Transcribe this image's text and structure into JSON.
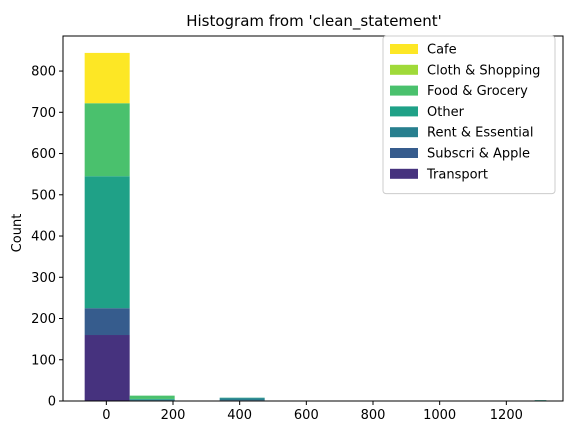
{
  "chart_data": {
    "type": "bar",
    "title": "Histogram from 'clean_statement'",
    "xlabel": "",
    "ylabel": "Count",
    "xlim": [
      -130,
      1370
    ],
    "ylim": [
      0,
      885
    ],
    "x_ticks": [
      0,
      200,
      400,
      600,
      800,
      1000,
      1200
    ],
    "y_ticks": [
      0,
      100,
      200,
      300,
      400,
      500,
      600,
      700,
      800
    ],
    "bins": [
      [
        -65,
        70
      ],
      [
        70,
        205
      ],
      [
        205,
        340
      ],
      [
        340,
        475
      ],
      [
        475,
        610
      ],
      [
        610,
        745
      ],
      [
        745,
        880
      ],
      [
        880,
        1015
      ],
      [
        1015,
        1150
      ],
      [
        1150,
        1285
      ],
      [
        1285,
        1320
      ]
    ],
    "stacked": true,
    "legend_position": "top-right",
    "series": [
      {
        "name": "Transport",
        "color": "#46327e",
        "values": [
          160,
          1,
          0,
          1,
          0,
          0,
          0,
          0,
          0,
          0,
          0
        ]
      },
      {
        "name": "Subscri & Apple",
        "color": "#365c8d",
        "values": [
          65,
          1,
          0,
          1,
          0,
          0,
          0,
          0,
          0,
          0,
          0
        ]
      },
      {
        "name": "Rent & Essential",
        "color": "#277f8e",
        "values": [
          0,
          1,
          0,
          5,
          0,
          0,
          0,
          0,
          0,
          1,
          1
        ]
      },
      {
        "name": "Other",
        "color": "#1fa187",
        "values": [
          320,
          2,
          0,
          1,
          0,
          0,
          0,
          0,
          0,
          0,
          1
        ]
      },
      {
        "name": "Food & Grocery",
        "color": "#4ac16d",
        "values": [
          177,
          8,
          0,
          0,
          0,
          0,
          0,
          0,
          0,
          0,
          0
        ]
      },
      {
        "name": "Cloth & Shopping",
        "color": "#a0da39",
        "values": [
          0,
          0,
          0,
          0,
          0,
          0,
          0,
          0,
          0,
          0,
          0
        ]
      },
      {
        "name": "Cafe",
        "color": "#fde725",
        "values": [
          122,
          0,
          0,
          0,
          0,
          0,
          0,
          0,
          0,
          0,
          0
        ]
      }
    ]
  },
  "legend": {
    "items": [
      {
        "label": "Cafe",
        "color": "#fde725"
      },
      {
        "label": "Cloth & Shopping",
        "color": "#a0da39"
      },
      {
        "label": "Food & Grocery",
        "color": "#4ac16d"
      },
      {
        "label": "Other",
        "color": "#1fa187"
      },
      {
        "label": "Rent & Essential",
        "color": "#277f8e"
      },
      {
        "label": "Subscri & Apple",
        "color": "#365c8d"
      },
      {
        "label": "Transport",
        "color": "#46327e"
      }
    ]
  }
}
